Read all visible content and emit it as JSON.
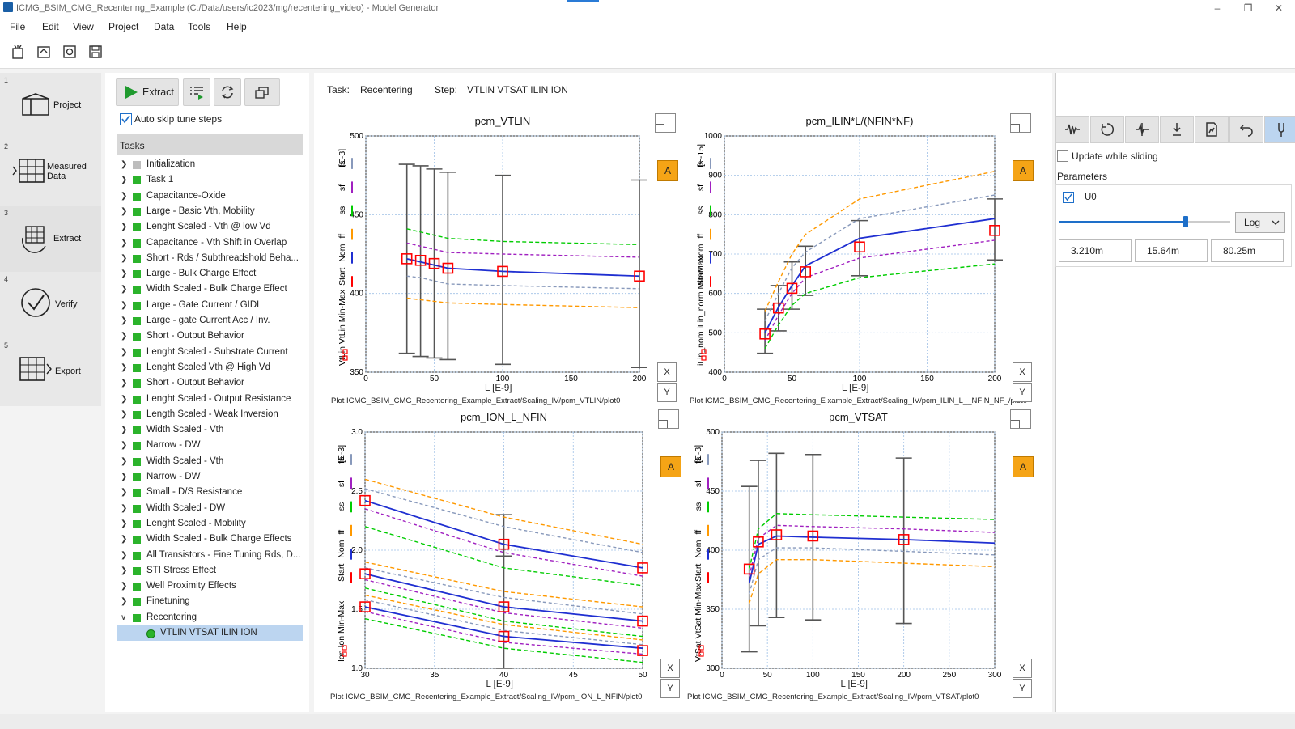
{
  "window": {
    "title": "ICMG_BSIM_CMG_Recentering_Example (C:/Data/users/ic2023/mg/recentering_video) - Model Generator",
    "minimize": "–",
    "restore": "❐",
    "close": "✕"
  },
  "menu": [
    "File",
    "Edit",
    "View",
    "Project",
    "Data",
    "Tools",
    "Help"
  ],
  "steps": [
    {
      "num": "1",
      "label": "Project"
    },
    {
      "num": "2",
      "label": "Measured Data"
    },
    {
      "num": "3",
      "label": "Extract"
    },
    {
      "num": "4",
      "label": "Verify"
    },
    {
      "num": "5",
      "label": "Export"
    }
  ],
  "extract_button": "Extract",
  "auto_skip": "Auto skip tune steps",
  "tasks_header": "Tasks",
  "tasks": [
    "Initialization",
    "Task 1",
    "Capacitance-Oxide",
    "Large - Basic Vth, Mobility",
    "Lenght Scaled - Vth @ low Vd",
    "Capacitance - Vth Shift in Overlap",
    "Short - Rds / Subthreadshold Beha...",
    "Large - Bulk Charge Effect",
    "Width Scaled - Bulk Charge Effect",
    "Large - Gate Current / GIDL",
    "Large - gate Current Acc / Inv.",
    "Short - Output Behavior",
    "Lenght Scaled - Substrate Current",
    "Lenght Scaled Vth @ High Vd",
    "Short - Output Behavior",
    "Lenght Scaled - Output Resistance",
    "Length Scaled - Weak Inversion",
    "Width Scaled - Vth",
    "Narrow - DW",
    "Width Scaled - Vth",
    "Narrow - DW",
    "Small - D/S Resistance",
    "Width Scaled - DW",
    "Lenght Scaled - Mobility",
    "Width Scaled - Bulk Charge Effects",
    "All Transistors - Fine Tuning Rds, D...",
    "STI Stress Effect",
    "Well Proximity Effects",
    "Finetuning",
    "Recentering"
  ],
  "selected_task": "VTLIN VTSAT ILIN ION",
  "task_label": "Task:",
  "task_value": "Recentering",
  "step_label": "Step:",
  "step_value": "VTLIN VTSAT ILIN ION",
  "ylegend": [
    "Start",
    "Nom",
    "ff",
    "ss",
    "sf",
    "fs"
  ],
  "plots": [
    {
      "title": "pcm_VTLIN",
      "xlabel": "L  [E-9]",
      "yscale": "[E-3]",
      "ytext": "VtLin  VtLin  Min-Max",
      "xticks": [
        "0",
        "50",
        "100",
        "150",
        "200"
      ],
      "yticks": [
        "500",
        "450",
        "400",
        "350"
      ],
      "path": "Plot ICMG_BSIM_CMG_Recentering_Example_Extract/Scaling_IV/pcm_VTLIN/plot0"
    },
    {
      "title": "pcm_ILIN*L/(NFIN*NF)",
      "xlabel": "L  [E-9]",
      "yscale": "[E-15]",
      "ytext": "iLin_nom  iLin_norm  Min-Max",
      "xticks": [
        "0",
        "50",
        "100",
        "150",
        "200"
      ],
      "yticks": [
        "1000",
        "900",
        "800",
        "700",
        "600",
        "500",
        "400"
      ],
      "path": "Plot ICMG_BSIM_CMG_Recentering_E xample_Extract/Scaling_IV/pcm_ILIN_L__NFIN_NF_/plot0"
    },
    {
      "title": "pcm_ION_L_NFIN",
      "xlabel": "L  [E-9]",
      "yscale": "[E-3]",
      "ytext": "Ion  Ion  Min-Max",
      "xticks": [
        "30",
        "35",
        "40",
        "45",
        "50"
      ],
      "yticks": [
        "3.0",
        "2.5",
        "2.0",
        "1.5",
        "1.0"
      ],
      "path": "Plot ICMG_BSIM_CMG_Recentering_Example_Extract/Scaling_IV/pcm_ION_L_NFIN/plot0"
    },
    {
      "title": "pcm_VTSAT",
      "xlabel": "L  [E-9]",
      "yscale": "[E-3]",
      "ytext": "VtSat  VtSat  Min-Max",
      "xticks": [
        "0",
        "50",
        "100",
        "150",
        "200",
        "250",
        "300"
      ],
      "yticks": [
        "500",
        "450",
        "400",
        "350",
        "300"
      ],
      "path": "Plot ICMG_BSIM_CMG_Recentering_Example_Extract/Scaling_IV/pcm_VTSAT/plot0"
    }
  ],
  "scale_x": "X",
  "scale_y": "Y",
  "auto_label": "A",
  "update_sliding": "Update while sliding",
  "parameters_label": "Parameters",
  "param_name": "U0",
  "param_scale": "Log",
  "param_fraction": 0.74,
  "param_values": [
    "3.210m",
    "15.64m",
    "80.25m"
  ],
  "colors": {
    "nom": "#1f2fd1",
    "start": "#ff0000",
    "ff": "#ff9900",
    "ss": "#00cc00",
    "sf": "#a020c0",
    "fs": "#8899bb",
    "minmax": "#555555",
    "accent": "#f5a416",
    "sel": "#bcd5f0"
  }
}
